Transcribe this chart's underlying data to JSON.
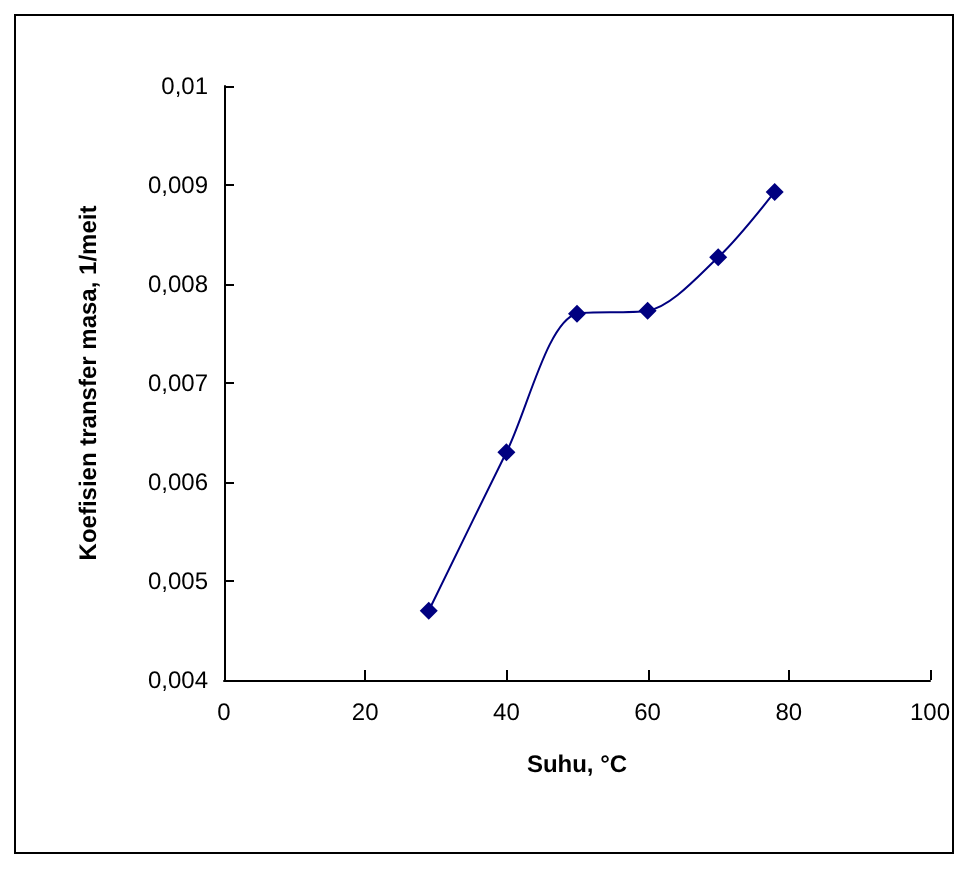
{
  "chart_data": {
    "type": "line",
    "xlabel": "Suhu, °C",
    "ylabel": "Koefisien transfer masa, 1/meit",
    "x": [
      29,
      40,
      50,
      60,
      70,
      78
    ],
    "series": [
      {
        "color": "#000080",
        "values": [
          0.0047,
          0.0063,
          0.0077,
          0.00773,
          0.00827,
          0.00893
        ]
      }
    ],
    "xlim": [
      0,
      100
    ],
    "xticks": [
      0,
      20,
      40,
      60,
      80,
      100
    ],
    "ylim": [
      0.004,
      0.01
    ],
    "yticks": [
      {
        "value": 0.004,
        "label": "0,004"
      },
      {
        "value": 0.005,
        "label": "0,005"
      },
      {
        "value": 0.006,
        "label": "0,006"
      },
      {
        "value": 0.007,
        "label": "0,007"
      },
      {
        "value": 0.008,
        "label": "0,008"
      },
      {
        "value": 0.009,
        "label": "0,009"
      },
      {
        "value": 0.01,
        "label": "0,01"
      }
    ],
    "marker": "diamond",
    "line_style": "solid",
    "grid": false
  }
}
